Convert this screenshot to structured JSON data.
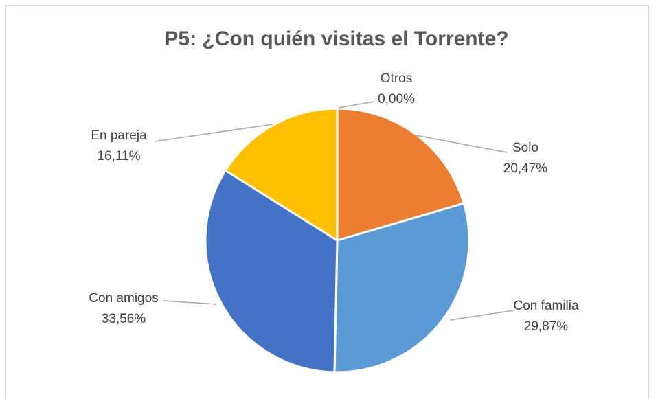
{
  "chart_data": {
    "type": "pie",
    "title": "P5: ¿Con quién visitas el Torrente?",
    "categories": [
      "Solo",
      "Con familia",
      "Con amigos",
      "En pareja",
      "Otros"
    ],
    "values": [
      20.47,
      29.87,
      33.56,
      16.11,
      0.0
    ],
    "value_labels": [
      "20,47%",
      "29,87%",
      "33,56%",
      "16,11%",
      "0,00%"
    ],
    "colors": [
      "#ED7D31",
      "#5B9BD5",
      "#4472C4",
      "#FFC000",
      "#A5A5A5"
    ]
  }
}
